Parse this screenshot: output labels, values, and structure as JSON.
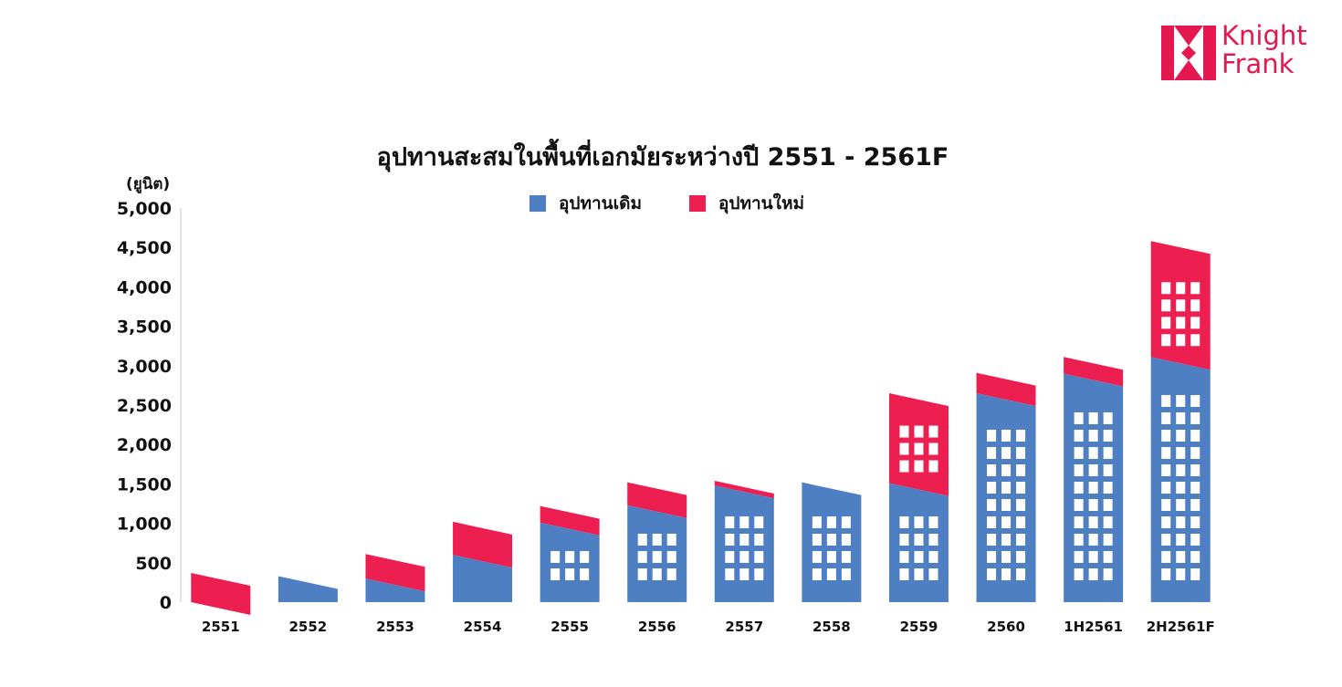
{
  "brand": {
    "line1": "Knight",
    "line2": "Frank",
    "color": "#e5174f"
  },
  "chart_data": {
    "type": "bar",
    "title": "อุปทานสะสมในพื้นที่เอกมัยระหว่างปี 2551 - 2561F",
    "ylabel": "(ยูนิต)",
    "xlabel": "",
    "ylim": [
      0,
      5000
    ],
    "yticks": [
      0,
      500,
      1000,
      1500,
      2000,
      2500,
      3000,
      3500,
      4000,
      4500,
      5000
    ],
    "ytick_labels": [
      "0",
      "500",
      "1,000",
      "1,500",
      "2,000",
      "2,500",
      "3,000",
      "3,500",
      "4,000",
      "4,500",
      "5,000"
    ],
    "categories": [
      "2551",
      "2552",
      "2553",
      "2554",
      "2555",
      "2556",
      "2557",
      "2558",
      "2559",
      "2560",
      "1H2561",
      "2H2561F"
    ],
    "stacked": true,
    "grid": false,
    "legend_position": "top",
    "series": [
      {
        "name": "อุปทานเดิม",
        "color": "#4f7fc3",
        "values": [
          0,
          330,
          300,
          600,
          1010,
          1230,
          1480,
          1520,
          1510,
          2650,
          2900,
          3110
        ]
      },
      {
        "name": "อุปทานใหม่",
        "color": "#ed1e50",
        "values": [
          370,
          0,
          310,
          420,
          210,
          290,
          60,
          0,
          1140,
          260,
          210,
          1470
        ]
      }
    ]
  }
}
